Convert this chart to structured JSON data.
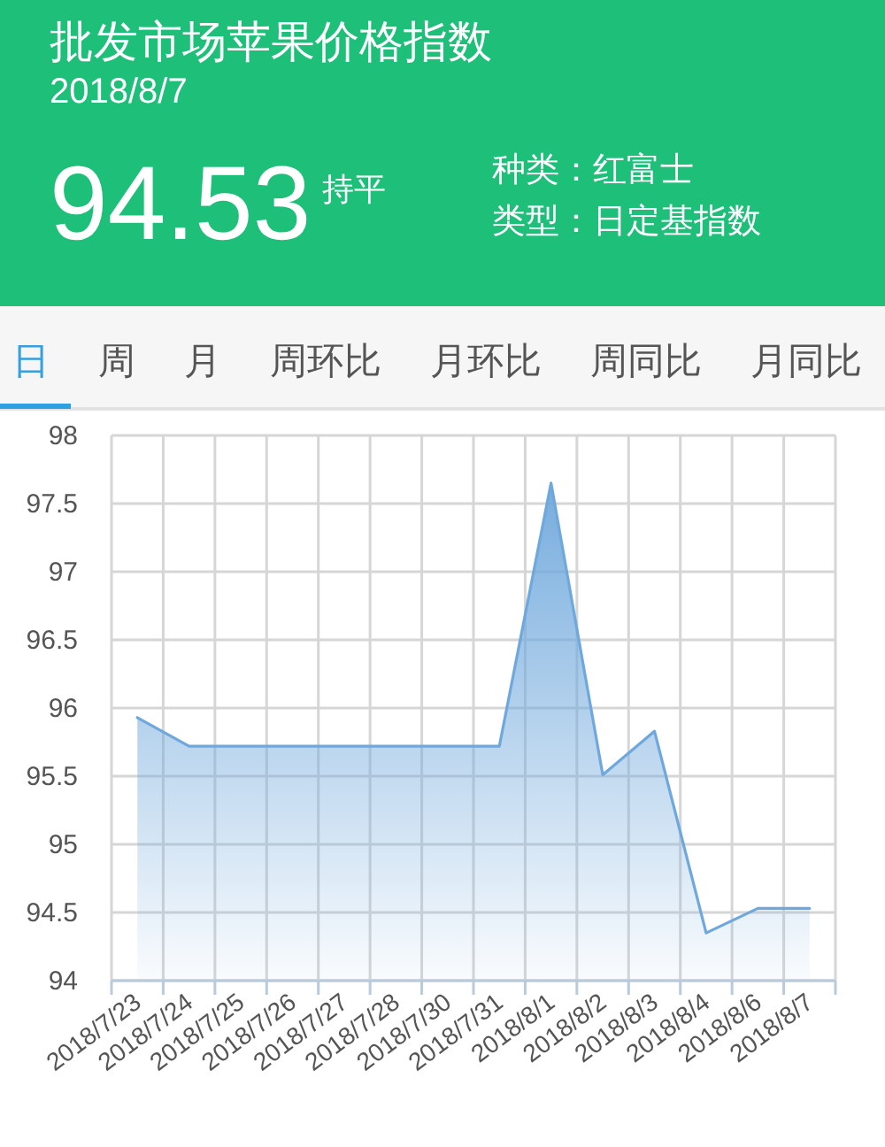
{
  "chart_data": {
    "type": "area",
    "title": "批发市场苹果价格指数",
    "subtitle": "2018/8/7",
    "annotations": [
      "94.53",
      "持平",
      "种类：红富士",
      "类型：日定基指数",
      "日",
      "周",
      "月",
      "周环比",
      "月环比",
      "周同比",
      "月同比"
    ],
    "categories": [
      "2018/7/23",
      "2018/7/24",
      "2018/7/25",
      "2018/7/26",
      "2018/7/27",
      "2018/7/28",
      "2018/7/30",
      "2018/7/31",
      "2018/8/1",
      "2018/8/2",
      "2018/8/3",
      "2018/8/4",
      "2018/8/6",
      "2018/8/7"
    ],
    "series": [
      {
        "color": "#6fa8dc",
        "values": [
          95.93,
          95.72,
          95.72,
          95.72,
          95.72,
          95.72,
          95.72,
          95.72,
          97.65,
          95.51,
          95.83,
          94.35,
          94.53,
          94.53
        ]
      }
    ],
    "ylim": [
      94,
      98
    ],
    "yticks": [
      94,
      94.5,
      95,
      95.5,
      96,
      96.5,
      97,
      97.5,
      98
    ],
    "grid": true
  }
}
